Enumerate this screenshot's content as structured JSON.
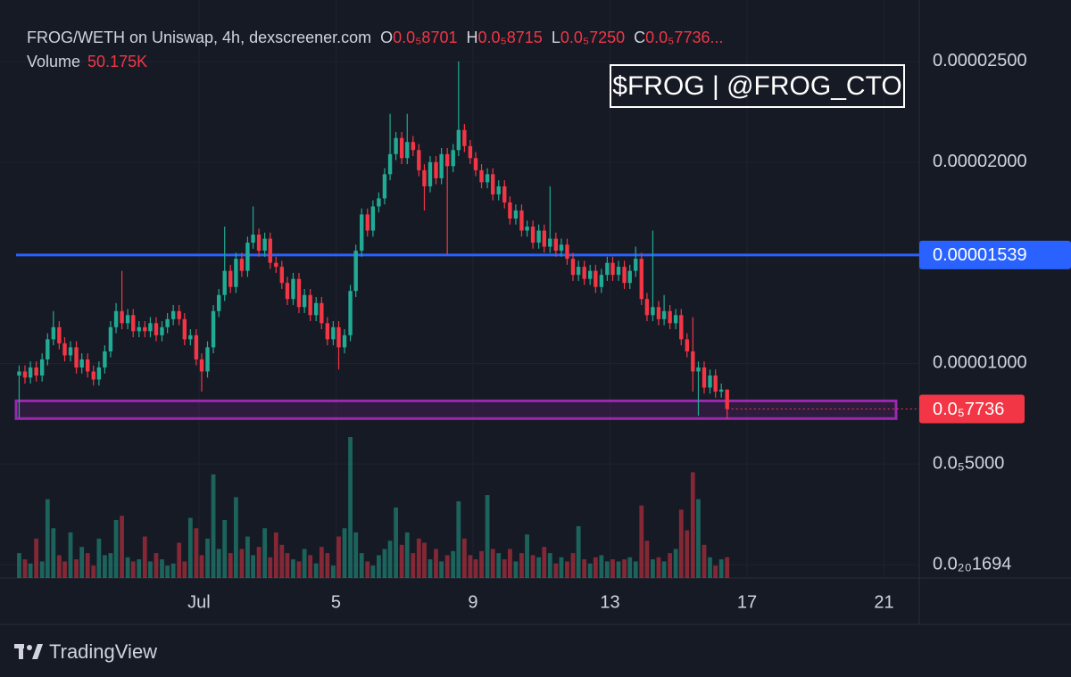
{
  "header": {
    "title": "FROG/WETH on Uniswap, 4h, dexscreener.com",
    "ohlc": [
      {
        "key": "O",
        "value": 8.701e-06,
        "label": "0.0₅8701"
      },
      {
        "key": "H",
        "value": 8.715e-06,
        "label": "0.0₅8715"
      },
      {
        "key": "L",
        "value": 7.25e-06,
        "label": "0.0₅7250"
      },
      {
        "key": "C",
        "value": 7.736e-06,
        "label": "0.0₅7736"
      }
    ],
    "ellipsis": "...",
    "volume_name": "Volume",
    "volume": {
      "value": 50175,
      "label": "50.175K"
    }
  },
  "note": "$FROG | @FROG_CTO",
  "footer": {
    "brand": "TradingView"
  },
  "chart_data": {
    "type": "candlestick",
    "up_color": "#22ab94",
    "down_color": "#f23645",
    "grid": true,
    "xlim": [
      -4.34,
      22.03
    ],
    "xticks": [
      {
        "value": 1,
        "label": "Jul"
      },
      5,
      9,
      13,
      17,
      21
    ],
    "ylim": [
      -6.6e-07,
      2.717e-05
    ],
    "yticks": [
      {
        "value": 2.5e-05,
        "label": "0.00002500"
      },
      {
        "value": 2e-05,
        "label": "0.00002000"
      },
      {
        "value": 1e-05,
        "label": "0.00001000"
      },
      {
        "value": 5e-06,
        "label": "0.0₅5000"
      },
      {
        "value": 1.694e-21,
        "label": "0.0₂₀1694"
      }
    ],
    "hline": {
      "value": 1.539e-05,
      "label": "0.00001539",
      "color": "#2962ff"
    },
    "last_price": {
      "value": 7.736e-06,
      "label": "0.0₅7736"
    },
    "zone": {
      "low": 7.26e-06,
      "high": 8.14e-06,
      "color": "#9c27b0"
    },
    "x": [
      -4.25,
      -4.08,
      -3.92,
      -3.75,
      -3.58,
      -3.42,
      -3.25,
      -3.08,
      -2.92,
      -2.75,
      -2.58,
      -2.42,
      -2.25,
      -2.08,
      -1.92,
      -1.75,
      -1.58,
      -1.42,
      -1.25,
      -1.08,
      -0.92,
      -0.75,
      -0.58,
      -0.42,
      -0.25,
      -0.08,
      0.08,
      0.25,
      0.42,
      0.58,
      0.75,
      0.92,
      1.08,
      1.25,
      1.42,
      1.58,
      1.75,
      1.92,
      2.08,
      2.25,
      2.42,
      2.58,
      2.75,
      2.92,
      3.08,
      3.25,
      3.42,
      3.58,
      3.75,
      3.92,
      4.08,
      4.25,
      4.42,
      4.58,
      4.75,
      4.92,
      5.08,
      5.25,
      5.42,
      5.58,
      5.75,
      5.92,
      6.08,
      6.25,
      6.42,
      6.58,
      6.75,
      6.92,
      7.08,
      7.25,
      7.42,
      7.58,
      7.75,
      7.92,
      8.08,
      8.25,
      8.42,
      8.58,
      8.75,
      8.92,
      9.08,
      9.25,
      9.42,
      9.58,
      9.75,
      9.92,
      10.08,
      10.25,
      10.42,
      10.58,
      10.75,
      10.92,
      11.08,
      11.25,
      11.42,
      11.58,
      11.75,
      11.92,
      12.08,
      12.25,
      12.42,
      12.58,
      12.75,
      12.92,
      13.08,
      13.25,
      13.42,
      13.58,
      13.75,
      13.92,
      14.08,
      14.25,
      14.42,
      14.58,
      14.75,
      14.92,
      15.08,
      15.25,
      15.42,
      15.58,
      15.75,
      15.92,
      16.08,
      16.25,
      16.42
    ],
    "open": [
      9.4e-06,
      9.6e-06,
      9.3e-06,
      9.8e-06,
      9.4e-06,
      1.02e-05,
      1.12e-05,
      1.18e-05,
      1.1e-05,
      1.04e-05,
      1.08e-05,
      9.8e-06,
      1.02e-05,
      9.6e-06,
      9.2e-06,
      9.8e-06,
      1.06e-05,
      1.18e-05,
      1.26e-05,
      1.2e-05,
      1.24e-05,
      1.16e-05,
      1.18e-05,
      1.16e-05,
      1.2e-05,
      1.14e-05,
      1.18e-05,
      1.22e-05,
      1.26e-05,
      1.22e-05,
      1.12e-05,
      1.14e-05,
      1.02e-05,
      9.6e-06,
      1.08e-05,
      1.26e-05,
      1.34e-05,
      1.46e-05,
      1.38e-05,
      1.52e-05,
      1.46e-05,
      1.6e-05,
      1.64e-05,
      1.56e-05,
      1.62e-05,
      1.5e-05,
      1.48e-05,
      1.4e-05,
      1.32e-05,
      1.42e-05,
      1.28e-05,
      1.34e-05,
      1.24e-05,
      1.3e-05,
      1.2e-05,
      1.12e-05,
      1.18e-05,
      1.08e-05,
      1.14e-05,
      1.36e-05,
      1.56e-05,
      1.74e-05,
      1.66e-05,
      1.78e-05,
      1.82e-05,
      1.94e-05,
      2.04e-05,
      2.12e-05,
      2.02e-05,
      2.1e-05,
      2.06e-05,
      1.96e-05,
      1.88e-05,
      2e-05,
      1.92e-05,
      2.04e-05,
      1.98e-05,
      2.06e-05,
      2.16e-05,
      2.08e-05,
      2.02e-05,
      1.96e-05,
      1.9e-05,
      1.94e-05,
      1.84e-05,
      1.88e-05,
      1.8e-05,
      1.72e-05,
      1.76e-05,
      1.66e-05,
      1.68e-05,
      1.6e-05,
      1.66e-05,
      1.58e-05,
      1.62e-05,
      1.56e-05,
      1.59e-05,
      1.52e-05,
      1.44e-05,
      1.48e-05,
      1.42e-05,
      1.46e-05,
      1.38e-05,
      1.44e-05,
      1.5e-05,
      1.44e-05,
      1.48e-05,
      1.4e-05,
      1.46e-05,
      1.52e-05,
      1.32e-05,
      1.24e-05,
      1.28e-05,
      1.22e-05,
      1.26e-05,
      1.2e-05,
      1.24e-05,
      1.12e-05,
      1.06e-05,
      9.6e-06,
      9.8e-06,
      8.8e-06,
      9.4e-06,
      8.6e-06,
      8.701e-06
    ],
    "high": [
      9.9e-06,
      9.9e-06,
      1.01e-05,
      1.01e-05,
      1.05e-05,
      1.15e-05,
      1.26e-05,
      1.21e-05,
      1.13e-05,
      1.11e-05,
      1.11e-05,
      1.05e-05,
      1.05e-05,
      9.9e-06,
      1.01e-05,
      1.09e-05,
      1.21e-05,
      1.3e-05,
      1.46e-05,
      1.27e-05,
      1.27e-05,
      1.21e-05,
      1.21e-05,
      1.23e-05,
      1.23e-05,
      1.21e-05,
      1.25e-05,
      1.29e-05,
      1.29e-05,
      1.25e-05,
      1.17e-05,
      1.17e-05,
      1.05e-05,
      1.11e-05,
      1.29e-05,
      1.37e-05,
      1.68e-05,
      1.49e-05,
      1.55e-05,
      1.55e-05,
      1.63e-05,
      1.78e-05,
      1.67e-05,
      1.65e-05,
      1.65e-05,
      1.53e-05,
      1.51e-05,
      1.43e-05,
      1.45e-05,
      1.45e-05,
      1.37e-05,
      1.37e-05,
      1.33e-05,
      1.33e-05,
      1.23e-05,
      1.21e-05,
      1.21e-05,
      1.17e-05,
      1.39e-05,
      1.59e-05,
      1.77e-05,
      1.77e-05,
      1.81e-05,
      1.85e-05,
      1.97e-05,
      2.24e-05,
      2.15e-05,
      2.15e-05,
      2.24e-05,
      2.13e-05,
      2.09e-05,
      1.99e-05,
      2.03e-05,
      2.03e-05,
      2.07e-05,
      2.07e-05,
      2.09e-05,
      2.5e-05,
      2.19e-05,
      2.11e-05,
      2.05e-05,
      1.99e-05,
      1.97e-05,
      1.97e-05,
      1.91e-05,
      1.91e-05,
      1.83e-05,
      1.79e-05,
      1.79e-05,
      1.71e-05,
      1.71e-05,
      1.69e-05,
      1.69e-05,
      1.88e-05,
      1.65e-05,
      1.62e-05,
      1.62e-05,
      1.55e-05,
      1.51e-05,
      1.51e-05,
      1.49e-05,
      1.49e-05,
      1.47e-05,
      1.53e-05,
      1.53e-05,
      1.51e-05,
      1.51e-05,
      1.49e-05,
      1.58e-05,
      1.55e-05,
      1.35e-05,
      1.66e-05,
      1.31e-05,
      1.34e-05,
      1.29e-05,
      1.27e-05,
      1.27e-05,
      1.15e-05,
      1.23e-05,
      1.01e-05,
      1.01e-05,
      9.7e-06,
      9.7e-06,
      9e-06,
      8.715e-06
    ],
    "low": [
      7.3e-06,
      9e-06,
      9e-06,
      9.1e-06,
      9.1e-06,
      9.9e-06,
      1.09e-05,
      1.07e-05,
      1.01e-05,
      1.01e-05,
      9.5e-06,
      9.5e-06,
      9.3e-06,
      8.9e-06,
      8.9e-06,
      9.5e-06,
      1.03e-05,
      1.15e-05,
      1.17e-05,
      1.17e-05,
      1.13e-05,
      1.13e-05,
      1.13e-05,
      1.13e-05,
      1.11e-05,
      1.11e-05,
      1.15e-05,
      1.19e-05,
      1.19e-05,
      1.09e-05,
      1.09e-05,
      9.9e-06,
      8.6e-06,
      9.3e-06,
      1.05e-05,
      1.23e-05,
      1.31e-05,
      1.35e-05,
      1.35e-05,
      1.43e-05,
      1.43e-05,
      1.57e-05,
      1.53e-05,
      1.53e-05,
      1.47e-05,
      1.45e-05,
      1.37e-05,
      1.29e-05,
      1.29e-05,
      1.25e-05,
      1.25e-05,
      1.21e-05,
      1.21e-05,
      1.17e-05,
      1.09e-05,
      1.09e-05,
      9.7e-06,
      1.05e-05,
      1.11e-05,
      1.33e-05,
      1.53e-05,
      1.63e-05,
      1.63e-05,
      1.75e-05,
      1.79e-05,
      1.91e-05,
      2.01e-05,
      1.99e-05,
      1.99e-05,
      2.03e-05,
      1.93e-05,
      1.76e-05,
      1.85e-05,
      1.89e-05,
      1.89e-05,
      1.54e-05,
      1.95e-05,
      2.03e-05,
      2.05e-05,
      1.99e-05,
      1.93e-05,
      1.87e-05,
      1.87e-05,
      1.81e-05,
      1.81e-05,
      1.77e-05,
      1.69e-05,
      1.69e-05,
      1.63e-05,
      1.63e-05,
      1.57e-05,
      1.57e-05,
      1.55e-05,
      1.55e-05,
      1.53e-05,
      1.53e-05,
      1.49e-05,
      1.41e-05,
      1.41e-05,
      1.39e-05,
      1.39e-05,
      1.35e-05,
      1.35e-05,
      1.41e-05,
      1.41e-05,
      1.41e-05,
      1.37e-05,
      1.37e-05,
      1.43e-05,
      1.29e-05,
      1.21e-05,
      1.21e-05,
      1.19e-05,
      1.19e-05,
      1.17e-05,
      1.17e-05,
      1.09e-05,
      1.03e-05,
      8.6e-06,
      7.4e-06,
      8.5e-06,
      8.5e-06,
      8.3e-06,
      8.3e-06,
      7.25e-06
    ],
    "close": [
      9.6e-06,
      9.3e-06,
      9.8e-06,
      9.4e-06,
      1.02e-05,
      1.12e-05,
      1.18e-05,
      1.1e-05,
      1.04e-05,
      1.08e-05,
      9.8e-06,
      1.02e-05,
      9.6e-06,
      9.2e-06,
      9.8e-06,
      1.06e-05,
      1.18e-05,
      1.26e-05,
      1.2e-05,
      1.24e-05,
      1.16e-05,
      1.18e-05,
      1.16e-05,
      1.2e-05,
      1.14e-05,
      1.18e-05,
      1.22e-05,
      1.26e-05,
      1.22e-05,
      1.12e-05,
      1.14e-05,
      1.02e-05,
      9.6e-06,
      1.08e-05,
      1.26e-05,
      1.34e-05,
      1.46e-05,
      1.38e-05,
      1.52e-05,
      1.46e-05,
      1.6e-05,
      1.64e-05,
      1.56e-05,
      1.62e-05,
      1.5e-05,
      1.48e-05,
      1.4e-05,
      1.32e-05,
      1.42e-05,
      1.28e-05,
      1.34e-05,
      1.24e-05,
      1.3e-05,
      1.2e-05,
      1.12e-05,
      1.18e-05,
      1.08e-05,
      1.14e-05,
      1.36e-05,
      1.56e-05,
      1.74e-05,
      1.66e-05,
      1.78e-05,
      1.82e-05,
      1.94e-05,
      2.04e-05,
      2.12e-05,
      2.02e-05,
      2.1e-05,
      2.06e-05,
      1.96e-05,
      1.88e-05,
      2e-05,
      1.92e-05,
      2.04e-05,
      1.98e-05,
      2.06e-05,
      2.16e-05,
      2.08e-05,
      2.02e-05,
      1.96e-05,
      1.9e-05,
      1.94e-05,
      1.84e-05,
      1.88e-05,
      1.8e-05,
      1.72e-05,
      1.76e-05,
      1.66e-05,
      1.68e-05,
      1.6e-05,
      1.66e-05,
      1.58e-05,
      1.62e-05,
      1.56e-05,
      1.59e-05,
      1.52e-05,
      1.44e-05,
      1.48e-05,
      1.42e-05,
      1.46e-05,
      1.38e-05,
      1.44e-05,
      1.5e-05,
      1.44e-05,
      1.48e-05,
      1.4e-05,
      1.46e-05,
      1.52e-05,
      1.32e-05,
      1.24e-05,
      1.28e-05,
      1.22e-05,
      1.26e-05,
      1.2e-05,
      1.24e-05,
      1.12e-05,
      1.06e-05,
      9.6e-06,
      9.8e-06,
      8.8e-06,
      9.4e-06,
      8.6e-06,
      8.701e-06,
      7.736e-06
    ],
    "volume": [
      60000,
      45000,
      35000,
      95000,
      40000,
      190000,
      120000,
      55000,
      40000,
      110000,
      45000,
      75000,
      60000,
      30000,
      95000,
      55000,
      60000,
      140000,
      150000,
      50000,
      40000,
      45000,
      100000,
      40000,
      60000,
      45000,
      30000,
      35000,
      85000,
      40000,
      145000,
      120000,
      55000,
      95000,
      250000,
      70000,
      140000,
      60000,
      195000,
      70000,
      100000,
      55000,
      75000,
      120000,
      50000,
      110000,
      80000,
      60000,
      45000,
      40000,
      70000,
      55000,
      35000,
      75000,
      60000,
      30000,
      100000,
      120000,
      340000,
      110000,
      60000,
      40000,
      30000,
      55000,
      70000,
      90000,
      170000,
      80000,
      110000,
      60000,
      95000,
      85000,
      45000,
      70000,
      40000,
      55000,
      65000,
      185000,
      95000,
      55000,
      45000,
      65000,
      200000,
      70000,
      60000,
      45000,
      70000,
      40000,
      60000,
      105000,
      55000,
      50000,
      75000,
      60000,
      35000,
      50000,
      40000,
      60000,
      125000,
      45000,
      35000,
      50000,
      55000,
      40000,
      45000,
      40000,
      45000,
      50000,
      40000,
      175000,
      90000,
      45000,
      50000,
      40000,
      60000,
      70000,
      165000,
      115000,
      255000,
      190000,
      80000,
      50000,
      30000,
      45000,
      50175
    ]
  }
}
